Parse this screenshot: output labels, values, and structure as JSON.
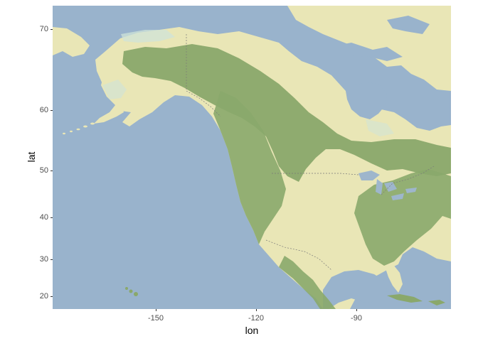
{
  "map": {
    "x_axis": {
      "title": "lon",
      "ticks": [
        "-150",
        "-120",
        "-90"
      ],
      "values": [
        -150,
        -120,
        -90
      ]
    },
    "y_axis": {
      "title": "lat",
      "ticks": [
        "70",
        "60",
        "50",
        "40",
        "30",
        "20"
      ],
      "values": [
        70,
        60,
        50,
        40,
        30,
        20
      ]
    },
    "colors": {
      "ocean": "#99b3cc",
      "land": "#e9e6b6",
      "forest": "#8aa86b",
      "forest_dark": "#7f9f63",
      "ice": "#cfe3d8",
      "lake": "#9eb6cc"
    }
  }
}
